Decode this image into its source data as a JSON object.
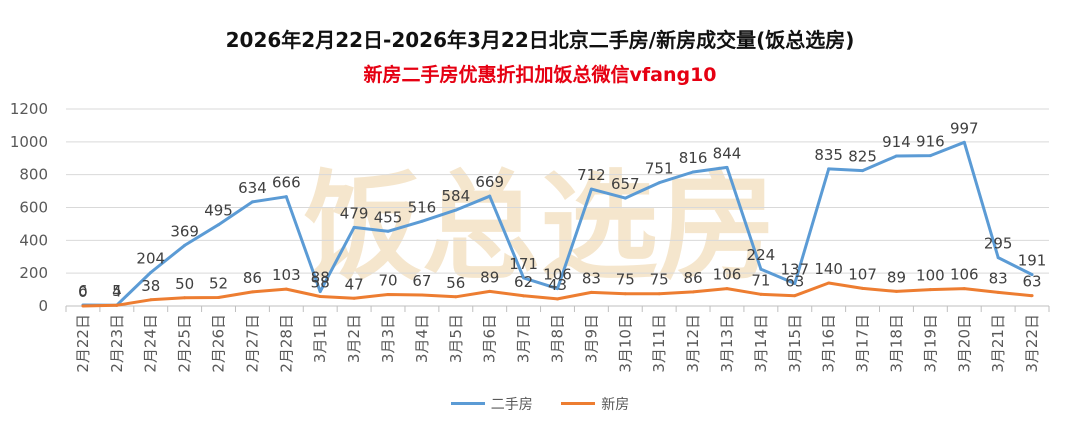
{
  "header": {
    "title": "2026年2月22日-2026年3月22日北京二手房/新房成交量(饭总选房)",
    "subtitle": "新房二手房优惠折扣加饭总微信vfang10"
  },
  "watermark": {
    "text": "饭总选房"
  },
  "colors": {
    "secondhand": "#5B9BD5",
    "newhouse": "#ED7D31",
    "subtitle": "#E60012",
    "grid": "#D9D9D9",
    "watermark": "#E9C892"
  },
  "chart_data": {
    "type": "line",
    "categories": [
      "2月22日",
      "2月23日",
      "2月24日",
      "2月25日",
      "2月26日",
      "2月27日",
      "2月28日",
      "3月1日",
      "3月2日",
      "3月3日",
      "3月4日",
      "3月5日",
      "3月6日",
      "3月7日",
      "3月8日",
      "3月9日",
      "3月10日",
      "3月11日",
      "3月12日",
      "3月13日",
      "3月14日",
      "3月15日",
      "3月16日",
      "3月17日",
      "3月18日",
      "3月19日",
      "3月20日",
      "3月21日",
      "3月22日"
    ],
    "series": [
      {
        "name": "二手房",
        "values": [
          6,
          5,
          204,
          369,
          495,
          634,
          666,
          88,
          479,
          455,
          516,
          584,
          669,
          171,
          106,
          712,
          657,
          751,
          816,
          844,
          224,
          137,
          835,
          825,
          914,
          916,
          997,
          295,
          191
        ]
      },
      {
        "name": "新房",
        "values": [
          0,
          4,
          38,
          50,
          52,
          86,
          103,
          58,
          47,
          70,
          67,
          56,
          89,
          62,
          43,
          83,
          75,
          75,
          86,
          106,
          71,
          63,
          140,
          107,
          89,
          100,
          106,
          83,
          63
        ]
      }
    ],
    "yticks": [
      "0",
      "200",
      "400",
      "600",
      "800",
      "1000",
      "1200"
    ],
    "ylim": [
      0,
      1200
    ],
    "grid": true,
    "legend": "bottom"
  }
}
